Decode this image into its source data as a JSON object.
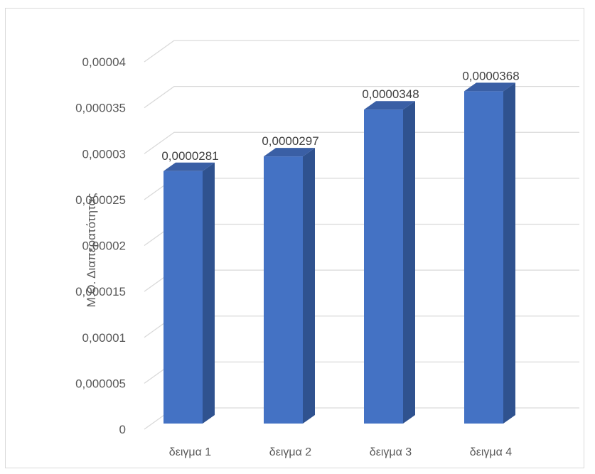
{
  "chart_data": {
    "type": "bar",
    "style": "3d-column",
    "categories": [
      "δειγμα 1",
      "δειγμα 2",
      "δειγμα 3",
      "δειγμα 4"
    ],
    "values": [
      2.81e-05,
      2.97e-05,
      3.48e-05,
      3.68e-05
    ],
    "data_labels": [
      "0,0000281",
      "0,0000297",
      "0,0000348",
      "0,0000368"
    ],
    "ylabel": "Μ.Ο. Διαπερατότητας",
    "ylim": [
      0,
      4e-05
    ],
    "y_ticks": [
      0,
      5e-06,
      1e-05,
      1.5e-05,
      2e-05,
      2.5e-05,
      3e-05,
      3.5e-05,
      4e-05
    ],
    "y_tick_labels": [
      "0",
      "0,000005",
      "0,00001",
      "0,000015",
      "0,00002",
      "0,000025",
      "0,00003",
      "0,000035",
      "0,00004"
    ],
    "grid": true,
    "legend": "none",
    "colors": {
      "bar_front": "#4472c4",
      "bar_side": "#2f528f",
      "bar_top": "#3a5fa5",
      "grid": "#d9d9d9",
      "text": "#595959"
    }
  }
}
